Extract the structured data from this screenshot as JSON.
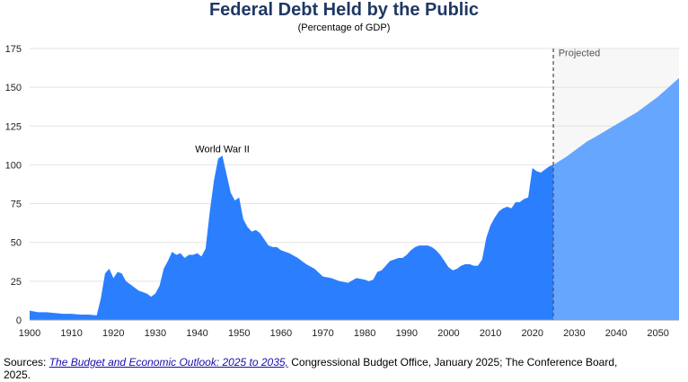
{
  "title": "Federal Debt Held by the Public",
  "subtitle": "(Percentage of GDP)",
  "source": {
    "prefix": "Sources: ",
    "link_text": "The Budget and Economic Outlook: 2025 to 2035,",
    "suffix": " Congressional Budget Office, January 2025; The Conference Board, 2025."
  },
  "chart_data": {
    "type": "area",
    "xlim": [
      1900,
      2055
    ],
    "ylim": [
      0,
      175
    ],
    "y_ticks": [
      0,
      25,
      50,
      75,
      100,
      125,
      150,
      175
    ],
    "x_ticks": [
      1900,
      1910,
      1920,
      1930,
      1940,
      1950,
      1960,
      1970,
      1980,
      1990,
      2000,
      2010,
      2020,
      2030,
      2040,
      2050
    ],
    "grid": "horizontal",
    "projection_start": 2025,
    "annotations": [
      {
        "text": "World War II",
        "x": 1946,
        "y": 107
      },
      {
        "text": "Projected",
        "x": 2026,
        "y": 170
      }
    ],
    "series": [
      {
        "type": "historical",
        "color": "#2b7fff",
        "x": [
          1900,
          1902,
          1904,
          1906,
          1908,
          1910,
          1912,
          1914,
          1916,
          1917,
          1918,
          1919,
          1920,
          1921,
          1922,
          1923,
          1924,
          1925,
          1926,
          1927,
          1928,
          1929,
          1930,
          1931,
          1932,
          1933,
          1934,
          1935,
          1936,
          1937,
          1938,
          1939,
          1940,
          1941,
          1942,
          1943,
          1944,
          1945,
          1946,
          1947,
          1948,
          1949,
          1950,
          1951,
          1952,
          1953,
          1954,
          1955,
          1956,
          1957,
          1958,
          1959,
          1960,
          1962,
          1964,
          1966,
          1968,
          1970,
          1972,
          1974,
          1976,
          1978,
          1980,
          1981,
          1982,
          1983,
          1984,
          1985,
          1986,
          1987,
          1988,
          1989,
          1990,
          1991,
          1992,
          1993,
          1994,
          1995,
          1996,
          1997,
          1998,
          1999,
          2000,
          2001,
          2002,
          2003,
          2004,
          2005,
          2006,
          2007,
          2008,
          2009,
          2010,
          2011,
          2012,
          2013,
          2014,
          2015,
          2016,
          2017,
          2018,
          2019,
          2020,
          2021,
          2022,
          2023,
          2024,
          2025
        ],
        "y": [
          6,
          5,
          5,
          4.5,
          4,
          4,
          3.5,
          3.5,
          3,
          14,
          30,
          33,
          27,
          31,
          30,
          25,
          23,
          21,
          19,
          18,
          17,
          15,
          17,
          22,
          33,
          38,
          44,
          42,
          43,
          40,
          42,
          42,
          43,
          41,
          46,
          70,
          90,
          104,
          106,
          94,
          82,
          77,
          79,
          65,
          60,
          57,
          58,
          56,
          52,
          48,
          47,
          47,
          45,
          43,
          40,
          36,
          33,
          28,
          27,
          25,
          24,
          27,
          26,
          25,
          26,
          31,
          32,
          35,
          38,
          39,
          40,
          40,
          42,
          45,
          47,
          48,
          48,
          48,
          47,
          45,
          42,
          38,
          34,
          32,
          33,
          35,
          36,
          36,
          35,
          35,
          39,
          53,
          61,
          66,
          70,
          72,
          73,
          72,
          76,
          76,
          78,
          79,
          98,
          96,
          95,
          97,
          99,
          100
        ]
      },
      {
        "type": "projected",
        "color": "#66a6ff",
        "x": [
          2025,
          2028,
          2030,
          2033,
          2035,
          2040,
          2045,
          2050,
          2055
        ],
        "y": [
          100,
          105,
          109,
          115,
          118,
          126,
          134,
          144,
          156
        ]
      }
    ]
  }
}
